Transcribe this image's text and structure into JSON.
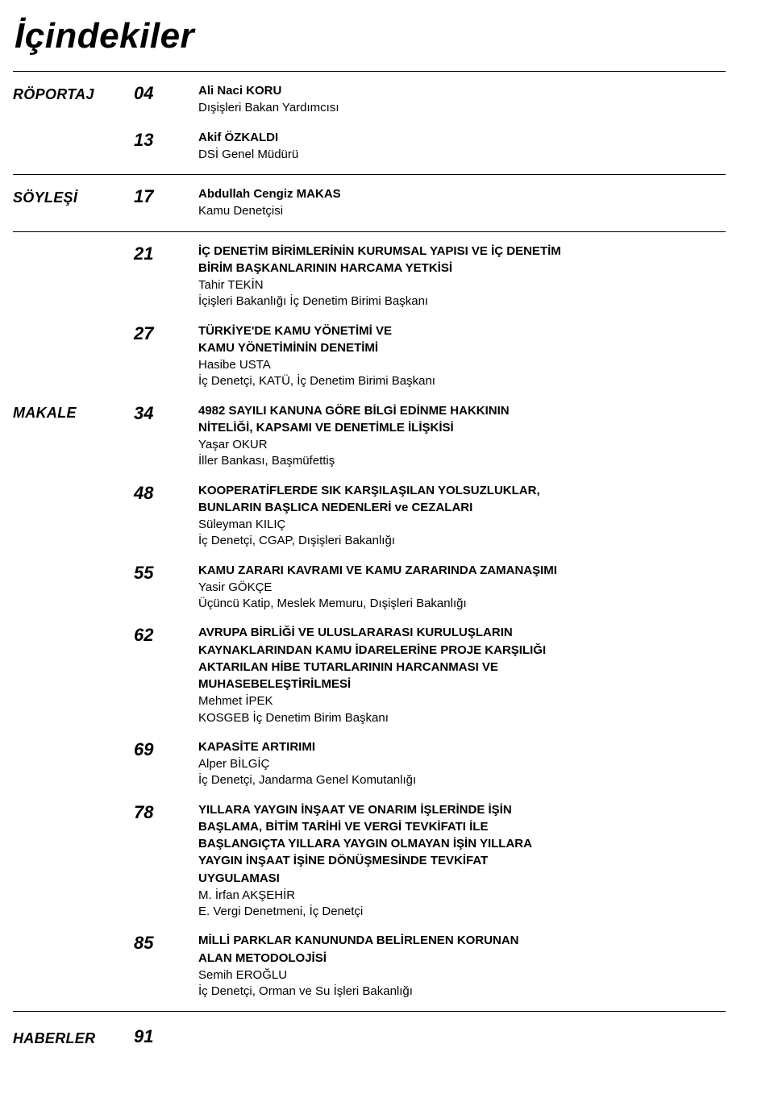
{
  "title": "İçindekiler",
  "sections": {
    "roportaj": {
      "label": "RÖPORTAJ",
      "items": [
        {
          "page": "04",
          "title": "Ali Naci KORU",
          "sub": "Dışişleri Bakan Yardımcısı"
        },
        {
          "page": "13",
          "title": "Akif ÖZKALDI",
          "sub": "DSİ Genel Müdürü"
        }
      ]
    },
    "soylesi": {
      "label": "SÖYLEŞİ",
      "items": [
        {
          "page": "17",
          "title": "Abdullah Cengiz MAKAS",
          "sub": "Kamu Denetçisi"
        }
      ]
    },
    "makale": {
      "label": "MAKALE",
      "items": [
        {
          "page": "21",
          "lines": [
            {
              "text": "İÇ DENETİM BİRİMLERİNİN KURUMSAL YAPISI VE İÇ DENETİM",
              "bold": true
            },
            {
              "text": "BİRİM BAŞKANLARININ HARCAMA YETKİSİ",
              "bold": true
            },
            {
              "text": "Tahir TEKİN",
              "bold": false
            },
            {
              "text": "İçişleri Bakanlığı İç Denetim Birimi Başkanı",
              "bold": false
            }
          ]
        },
        {
          "page": "27",
          "lines": [
            {
              "text": "TÜRKİYE'DE KAMU YÖNETİMİ VE",
              "bold": true
            },
            {
              "text": "KAMU YÖNETİMİNİN DENETİMİ",
              "bold": true
            },
            {
              "text": "Hasibe USTA",
              "bold": false
            },
            {
              "text": "İç Denetçi, KATÜ, İç Denetim Birimi Başkanı",
              "bold": false
            }
          ]
        },
        {
          "page": "34",
          "lines": [
            {
              "text": "4982 SAYILI KANUNA GÖRE BİLGİ EDİNME HAKKININ",
              "bold": true
            },
            {
              "text": "NİTELİĞİ, KAPSAMI VE DENETİMLE İLİŞKİSİ",
              "bold": true
            },
            {
              "text": "Yaşar OKUR",
              "bold": false
            },
            {
              "text": "İller Bankası, Başmüfettiş",
              "bold": false
            }
          ]
        },
        {
          "page": "48",
          "lines": [
            {
              "text": "KOOPERATİFLERDE SIK KARŞILAŞILAN YOLSUZLUKLAR,",
              "bold": true
            },
            {
              "text": "BUNLARIN BAŞLICA NEDENLERİ ve CEZALARI",
              "bold": true
            },
            {
              "text": "Süleyman KILIÇ",
              "bold": false
            },
            {
              "text": "İç Denetçi, CGAP, Dışişleri Bakanlığı",
              "bold": false
            }
          ]
        },
        {
          "page": "55",
          "lines": [
            {
              "text": "KAMU ZARARI KAVRAMI VE KAMU ZARARINDA ZAMANAŞIMI",
              "bold": true
            },
            {
              "text": "Yasir GÖKÇE",
              "bold": false
            },
            {
              "text": "Üçüncü Katip, Meslek Memuru, Dışişleri Bakanlığı",
              "bold": false
            }
          ]
        },
        {
          "page": "62",
          "lines": [
            {
              "text": "AVRUPA BİRLİĞİ VE ULUSLARARASI KURULUŞLARIN",
              "bold": true
            },
            {
              "text": "KAYNAKLARINDAN KAMU İDARELERİNE PROJE KARŞILIĞI",
              "bold": true
            },
            {
              "text": "AKTARILAN HİBE TUTARLARININ HARCANMASI VE",
              "bold": true
            },
            {
              "text": "MUHASEBELEŞTİRİLMESİ",
              "bold": true
            },
            {
              "text": "Mehmet İPEK",
              "bold": false
            },
            {
              "text": "KOSGEB İç Denetim Birim Başkanı",
              "bold": false
            }
          ]
        },
        {
          "page": "69",
          "lines": [
            {
              "text": "KAPASİTE ARTIRIMI",
              "bold": true
            },
            {
              "text": "Alper BİLGİÇ",
              "bold": false
            },
            {
              "text": "İç Denetçi, Jandarma Genel Komutanlığı",
              "bold": false
            }
          ]
        },
        {
          "page": "78",
          "lines": [
            {
              "text": "YILLARA YAYGIN İNŞAAT VE ONARIM İŞLERİNDE İŞİN",
              "bold": true
            },
            {
              "text": "BAŞLAMA, BİTİM TARİHİ  VE VERGİ TEVKİFATI İLE",
              "bold": true
            },
            {
              "text": "BAŞLANGIÇTA YILLARA YAYGIN OLMAYAN İŞİN YILLARA",
              "bold": true
            },
            {
              "text": "YAYGIN İNŞAAT İŞİNE  DÖNÜŞMESİNDE TEVKİFAT",
              "bold": true
            },
            {
              "text": "UYGULAMASI",
              "bold": true
            },
            {
              "text": "M. İrfan AKŞEHİR",
              "bold": false
            },
            {
              "text": "E. Vergi Denetmeni, İç Denetçi",
              "bold": false
            }
          ]
        },
        {
          "page": "85",
          "lines": [
            {
              "text": "MİLLİ PARKLAR KANUNUNDA BELİRLENEN KORUNAN",
              "bold": true
            },
            {
              "text": "ALAN METODOLOJİSİ",
              "bold": true
            },
            {
              "text": "Semih EROĞLU",
              "bold": false
            },
            {
              "text": "İç Denetçi, Orman ve Su İşleri Bakanlığı",
              "bold": false
            }
          ]
        }
      ]
    },
    "haberler": {
      "label": "HABERLER",
      "page": "91"
    }
  }
}
